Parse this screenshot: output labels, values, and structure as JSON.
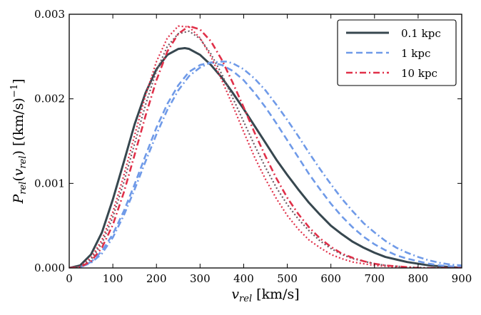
{
  "chart_data": {
    "type": "line",
    "xlabel": "v_rel [km/s]",
    "ylabel": "P_rel(v_rel) [(km/s)^-1]",
    "xlim": [
      0,
      900
    ],
    "ylim": [
      0,
      0.003
    ],
    "xticks": [
      "0",
      "100",
      "200",
      "300",
      "400",
      "500",
      "600",
      "700",
      "800",
      "900"
    ],
    "yticks": [
      "0.000",
      "0.001",
      "0.002",
      "0.003"
    ],
    "grid": false,
    "legend_position": "top-right",
    "legend": [
      {
        "label": "0.1 kpc",
        "color": "#37474f",
        "dash": "solid"
      },
      {
        "label": "1 kpc",
        "color": "#6f9ae8",
        "dash": "dashed"
      },
      {
        "label": "10 kpc",
        "color": "#e03049",
        "dash": "dashdot"
      }
    ],
    "series": [
      {
        "name": "0.1 kpc",
        "color": "#37474f",
        "dash": "solid",
        "x": [
          0,
          25,
          50,
          75,
          100,
          125,
          150,
          175,
          200,
          225,
          250,
          265,
          275,
          300,
          325,
          350,
          375,
          400,
          425,
          450,
          475,
          500,
          525,
          550,
          575,
          600,
          625,
          650,
          675,
          700,
          725,
          750,
          775,
          800,
          825,
          850,
          875,
          900
        ],
        "y": [
          0,
          3e-05,
          0.00016,
          0.00042,
          0.00081,
          0.00125,
          0.0017,
          0.00207,
          0.00235,
          0.00252,
          0.00259,
          0.0026,
          0.00259,
          0.00252,
          0.0024,
          0.00225,
          0.00207,
          0.00188,
          0.00168,
          0.00148,
          0.00128,
          0.0011,
          0.00093,
          0.00077,
          0.00063,
          0.0005,
          0.0004,
          0.00031,
          0.00024,
          0.00018,
          0.00013,
          0.0001,
          7e-05,
          5e-05,
          3e-05,
          2e-05,
          1e-05,
          0
        ]
      },
      {
        "name": "",
        "color": "#6f9ae8",
        "dash": "dashdot",
        "x": [
          0,
          25,
          50,
          75,
          100,
          125,
          150,
          175,
          200,
          225,
          250,
          275,
          300,
          325,
          350,
          360,
          375,
          400,
          425,
          450,
          475,
          500,
          525,
          550,
          575,
          600,
          625,
          650,
          675,
          700,
          725,
          750,
          775,
          800,
          825,
          850,
          875,
          900
        ],
        "y": [
          0,
          1e-05,
          6e-05,
          0.00017,
          0.00036,
          0.00062,
          0.00093,
          0.00126,
          0.00158,
          0.00187,
          0.0021,
          0.00227,
          0.00237,
          0.00243,
          0.00244,
          0.00244,
          0.00242,
          0.00235,
          0.00224,
          0.0021,
          0.00193,
          0.00175,
          0.00156,
          0.00136,
          0.00117,
          0.00099,
          0.00082,
          0.00067,
          0.00053,
          0.00042,
          0.00032,
          0.00024,
          0.00018,
          0.00013,
          9e-05,
          6e-05,
          4e-05,
          3e-05
        ]
      },
      {
        "name": "1 kpc",
        "color": "#6f9ae8",
        "dash": "dashed",
        "x": [
          0,
          25,
          50,
          75,
          100,
          125,
          150,
          175,
          200,
          225,
          250,
          275,
          300,
          325,
          350,
          375,
          400,
          425,
          450,
          475,
          500,
          525,
          550,
          575,
          600,
          625,
          650,
          675,
          700,
          725,
          750,
          775,
          800,
          825,
          850,
          875,
          900
        ],
        "y": [
          0,
          1e-05,
          7e-05,
          0.0002,
          0.0004,
          0.00067,
          0.00099,
          0.00133,
          0.00166,
          0.00194,
          0.00216,
          0.00232,
          0.0024,
          0.00243,
          0.0024,
          0.00233,
          0.00222,
          0.00207,
          0.0019,
          0.00171,
          0.00151,
          0.00131,
          0.00111,
          0.00093,
          0.00076,
          0.00061,
          0.00048,
          0.00037,
          0.00028,
          0.00021,
          0.00015,
          0.00011,
          8e-05,
          5e-05,
          3e-05,
          2e-05,
          1e-05
        ]
      },
      {
        "name": "",
        "color": "#e03049",
        "dash": "dotted",
        "x": [
          0,
          25,
          50,
          75,
          100,
          125,
          150,
          175,
          200,
          225,
          250,
          275,
          300,
          325,
          350,
          375,
          400,
          425,
          450,
          475,
          500,
          525,
          550,
          575,
          600,
          625,
          650,
          675,
          700,
          725,
          750,
          775,
          800,
          825,
          850,
          875,
          900
        ],
        "y": [
          0,
          2e-05,
          0.00012,
          0.00033,
          0.00066,
          0.00109,
          0.00157,
          0.00204,
          0.00244,
          0.00272,
          0.00286,
          0.00285,
          0.00272,
          0.0025,
          0.00222,
          0.00192,
          0.00161,
          0.00131,
          0.00105,
          0.00082,
          0.00062,
          0.00046,
          0.00033,
          0.00024,
          0.00016,
          0.00011,
          7e-05,
          5e-05,
          3e-05,
          2e-05,
          1e-05,
          5e-06,
          0,
          0,
          0,
          0,
          0
        ]
      },
      {
        "name": "",
        "color": "#6b5a64",
        "dash": "dotted",
        "x": [
          0,
          25,
          50,
          75,
          100,
          125,
          150,
          175,
          200,
          225,
          250,
          275,
          300,
          325,
          350,
          375,
          400,
          425,
          450,
          475,
          500,
          525,
          550,
          575,
          600,
          625,
          650,
          675,
          700,
          725,
          750,
          775,
          800,
          825,
          850,
          875,
          900
        ],
        "y": [
          0,
          2e-05,
          0.0001,
          0.00029,
          0.0006,
          0.00101,
          0.00147,
          0.00193,
          0.00233,
          0.00262,
          0.00277,
          0.0028,
          0.00271,
          0.00253,
          0.00229,
          0.00201,
          0.00173,
          0.00145,
          0.00119,
          0.00095,
          0.00075,
          0.00058,
          0.00044,
          0.00032,
          0.00023,
          0.00016,
          0.00011,
          8e-05,
          5e-05,
          3e-05,
          2e-05,
          1e-05,
          6e-06,
          0,
          0,
          0,
          0
        ]
      },
      {
        "name": "10 kpc",
        "color": "#e03049",
        "dash": "dashdot",
        "x": [
          0,
          25,
          50,
          75,
          100,
          125,
          150,
          175,
          200,
          225,
          250,
          275,
          300,
          325,
          350,
          375,
          400,
          425,
          450,
          475,
          500,
          525,
          550,
          575,
          600,
          625,
          650,
          675,
          700,
          725,
          750,
          775,
          800,
          825,
          850,
          875,
          900
        ],
        "y": [
          0,
          1e-05,
          8e-05,
          0.00024,
          0.00051,
          0.00089,
          0.00134,
          0.0018,
          0.00222,
          0.00256,
          0.00277,
          0.00286,
          0.00282,
          0.00268,
          0.00246,
          0.00219,
          0.0019,
          0.0016,
          0.00132,
          0.00106,
          0.00083,
          0.00064,
          0.00048,
          0.00035,
          0.00025,
          0.00017,
          0.00012,
          8e-05,
          5e-05,
          3e-05,
          2e-05,
          1e-05,
          0,
          0,
          0,
          0,
          0
        ]
      }
    ]
  }
}
